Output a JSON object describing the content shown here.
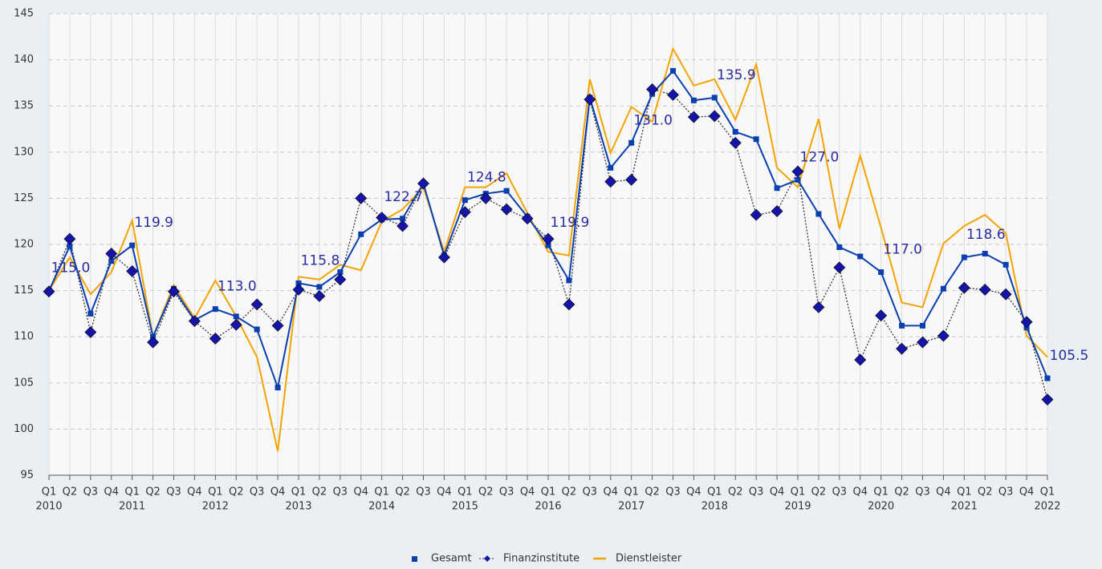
{
  "chart_data": {
    "type": "line",
    "categories": [
      "Q1",
      "Q2",
      "Q3",
      "Q4",
      "Q1",
      "Q2",
      "Q3",
      "Q4",
      "Q1",
      "Q2",
      "Q3",
      "Q4",
      "Q1",
      "Q2",
      "Q3",
      "Q4",
      "Q1",
      "Q2",
      "Q3",
      "Q4",
      "Q1",
      "Q2",
      "Q3",
      "Q4",
      "Q1",
      "Q2",
      "Q3",
      "Q4",
      "Q1",
      "Q2",
      "Q3",
      "Q4",
      "Q1",
      "Q2",
      "Q3",
      "Q4",
      "Q1",
      "Q2",
      "Q3",
      "Q4",
      "Q1",
      "Q2",
      "Q3",
      "Q4",
      "Q1",
      "Q2",
      "Q3",
      "Q4",
      "Q1"
    ],
    "years": [
      "2010",
      null,
      null,
      null,
      "2011",
      null,
      null,
      null,
      "2012",
      null,
      null,
      null,
      "2013",
      null,
      null,
      null,
      "2014",
      null,
      null,
      null,
      "2015",
      null,
      null,
      null,
      "2016",
      null,
      null,
      null,
      "2017",
      null,
      null,
      null,
      "2018",
      null,
      null,
      null,
      "2019",
      null,
      null,
      null,
      "2020",
      null,
      null,
      null,
      "2021",
      null,
      null,
      null,
      "2022"
    ],
    "series": [
      {
        "name": "Gesamt",
        "color": "#0a3fb0",
        "marker": "square",
        "dash": "solid",
        "values": [
          115.0,
          119.8,
          112.5,
          118.2,
          119.9,
          110.0,
          115.2,
          111.8,
          113.0,
          112.2,
          110.8,
          104.5,
          115.8,
          115.4,
          117.0,
          121.1,
          122.7,
          122.8,
          126.6,
          118.8,
          124.8,
          125.5,
          125.8,
          123.0,
          119.9,
          116.1,
          135.9,
          128.3,
          131.0,
          136.3,
          138.8,
          135.6,
          135.9,
          132.2,
          131.4,
          126.1,
          127.0,
          123.3,
          119.7,
          118.7,
          117.0,
          111.2,
          111.2,
          115.2,
          118.6,
          119.0,
          117.8,
          111.0,
          105.5
        ],
        "value_labels": [
          "115.0",
          null,
          null,
          null,
          "119.9",
          null,
          null,
          null,
          "113.0",
          null,
          null,
          null,
          "115.8",
          null,
          null,
          null,
          "122.7",
          null,
          null,
          null,
          "124.8",
          null,
          null,
          null,
          "119.9",
          null,
          null,
          null,
          "131.0",
          null,
          null,
          null,
          "135.9",
          null,
          null,
          null,
          "127.0",
          null,
          null,
          null,
          "117.0",
          null,
          null,
          null,
          "118.6",
          null,
          null,
          null,
          "105.5"
        ]
      },
      {
        "name": "Finanzinstitute",
        "color": "#1414a8",
        "line_color": "#333333",
        "marker": "diamond",
        "dash": "dotted",
        "values": [
          114.9,
          120.6,
          110.5,
          119.0,
          117.1,
          109.4,
          114.9,
          111.7,
          109.8,
          111.3,
          113.5,
          111.2,
          115.1,
          114.4,
          116.2,
          125.0,
          122.9,
          122.0,
          126.6,
          118.6,
          123.5,
          125.0,
          123.8,
          122.8,
          120.6,
          113.5,
          135.7,
          126.8,
          127.0,
          136.8,
          136.2,
          133.8,
          133.9,
          131.0,
          123.2,
          123.6,
          127.9,
          113.2,
          117.5,
          107.5,
          112.3,
          108.7,
          109.4,
          110.1,
          115.3,
          115.1,
          114.6,
          111.6,
          103.2
        ]
      },
      {
        "name": "Dienstleister",
        "color": "#f5a300",
        "marker": "none",
        "dash": "solid",
        "values": [
          115.0,
          118.6,
          114.6,
          117.0,
          122.6,
          110.0,
          115.6,
          112.0,
          116.1,
          112.2,
          107.8,
          97.6,
          116.5,
          116.2,
          117.8,
          117.2,
          122.5,
          123.8,
          126.2,
          119.2,
          126.2,
          126.2,
          127.7,
          123.4,
          119.2,
          118.8,
          137.9,
          129.9,
          134.9,
          133.3,
          141.2,
          137.2,
          137.9,
          133.5,
          139.5,
          128.3,
          126.2,
          133.6,
          121.7,
          129.6,
          121.8,
          113.7,
          113.2,
          120.1,
          122.0,
          123.2,
          121.2,
          110.1,
          107.8
        ]
      }
    ],
    "ylim": [
      95,
      145
    ],
    "yticks": [
      95,
      100,
      105,
      110,
      115,
      120,
      125,
      130,
      135,
      140,
      145
    ],
    "grid": true,
    "legend": "bottom"
  }
}
